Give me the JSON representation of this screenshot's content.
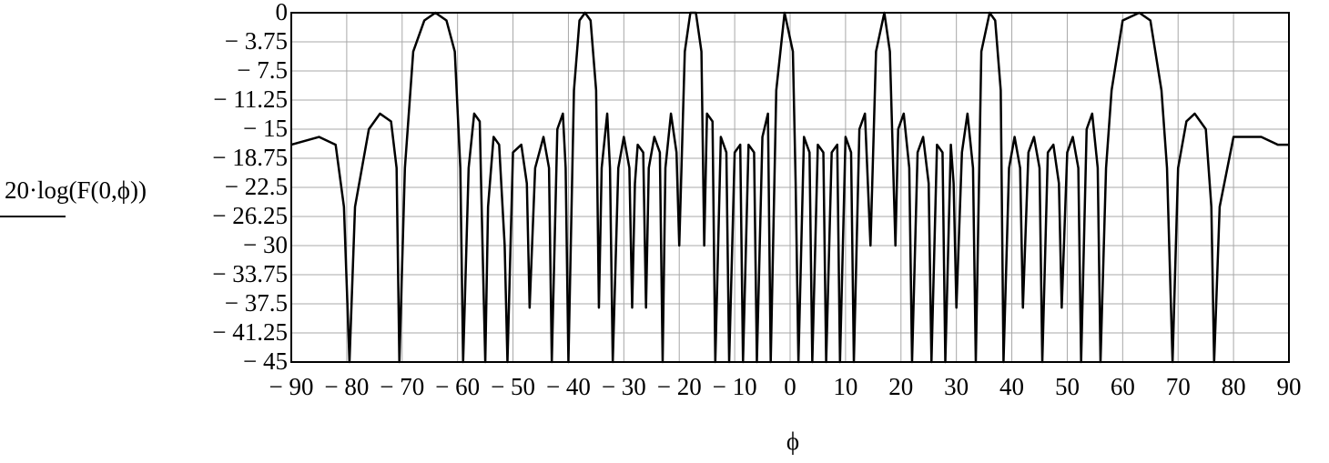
{
  "chart_data": {
    "type": "line",
    "x_label": "ϕ",
    "y_label": "20·log(F(0,ϕ))",
    "xlim": [
      -90,
      90
    ],
    "ylim": [
      -45,
      0
    ],
    "xticks": [
      {
        "value": -90,
        "label": "− 90"
      },
      {
        "value": -80,
        "label": "− 80"
      },
      {
        "value": -70,
        "label": "− 70"
      },
      {
        "value": -60,
        "label": "− 60"
      },
      {
        "value": -50,
        "label": "− 50"
      },
      {
        "value": -40,
        "label": "− 40"
      },
      {
        "value": -30,
        "label": "− 30"
      },
      {
        "value": -20,
        "label": "− 20"
      },
      {
        "value": -10,
        "label": "− 10"
      },
      0,
      10,
      20,
      30,
      40,
      50,
      60,
      70,
      80,
      90
    ],
    "yticks": [
      0,
      {
        "value": -3.75,
        "label": "− 3.75"
      },
      {
        "value": -7.5,
        "label": "− 7.5"
      },
      {
        "value": -11.25,
        "label": "− 11.25"
      },
      {
        "value": -15,
        "label": "− 15"
      },
      {
        "value": -18.75,
        "label": "− 18.75"
      },
      {
        "value": -22.5,
        "label": "− 22.5"
      },
      {
        "value": -26.25,
        "label": "− 26.25"
      },
      {
        "value": -30,
        "label": "− 30"
      },
      {
        "value": -33.75,
        "label": "− 33.75"
      },
      {
        "value": -37.5,
        "label": "− 37.5"
      },
      {
        "value": -41.25,
        "label": "− 41.25"
      },
      {
        "value": -45,
        "label": "− 45"
      }
    ],
    "grid": true,
    "x": [
      -90,
      -85,
      -82,
      -80.5,
      -79.5,
      -78.5,
      -76,
      -74,
      -72,
      -71,
      -70.5,
      -69.5,
      -68,
      -66,
      -64,
      -62,
      -60.5,
      -59.5,
      -59,
      -58,
      -57,
      -56,
      -55.5,
      -55,
      -54.5,
      -53.5,
      -52.5,
      -51.5,
      -51,
      -50,
      -48.5,
      -47.5,
      -47,
      -46,
      -44.5,
      -43.5,
      -43,
      -42,
      -41,
      -40.5,
      -40,
      -39,
      -38,
      -37,
      -36,
      -35,
      -34.5,
      -34,
      -33,
      -32.5,
      -32,
      -31,
      -30,
      -29,
      -28.5,
      -28,
      -27.5,
      -26.5,
      -26,
      -25.5,
      -24.5,
      -23.5,
      -23,
      -22.5,
      -21.5,
      -20.5,
      -20,
      -19,
      -18,
      -17,
      -16,
      -15.5,
      -15,
      -14,
      -13.5,
      -12.5,
      -11.5,
      -11,
      -10,
      -9,
      -8.5,
      -7.5,
      -6.5,
      -6,
      -5,
      -4,
      -3.5,
      -2.5,
      -1,
      0.5,
      1,
      1.5,
      2.5,
      3.5,
      4,
      5,
      6,
      6.5,
      7.5,
      8.5,
      9,
      10,
      11,
      11.5,
      12.5,
      13.5,
      14.5,
      15.5,
      17,
      18,
      19,
      19.5,
      20.5,
      21.5,
      22,
      23,
      24,
      25,
      25.5,
      26.5,
      27.5,
      28,
      29,
      29.5,
      30,
      31,
      32,
      33,
      33.5,
      34.5,
      36,
      37,
      38,
      38.5,
      39.5,
      40.5,
      41.5,
      42,
      43,
      44,
      45,
      45.5,
      46.5,
      47.5,
      48.5,
      49,
      50,
      51,
      52,
      52.5,
      53.5,
      54.5,
      55.5,
      56,
      57,
      58,
      60,
      63,
      65,
      67,
      68,
      69,
      70,
      71.5,
      73,
      75,
      76,
      76.5,
      77.5,
      80,
      85,
      88,
      90
    ],
    "series": [
      {
        "color": "#000000",
        "values": [
          -17,
          -16,
          -17,
          -25,
          -45,
          -25,
          -15,
          -13,
          -14,
          -20,
          -45,
          -20,
          -5,
          -1,
          0,
          -1,
          -5,
          -20,
          -45,
          -20,
          -13,
          -14,
          -30,
          -45,
          -25,
          -16,
          -17,
          -30,
          -45,
          -18,
          -17,
          -22,
          -38,
          -20,
          -16,
          -20,
          -45,
          -15,
          -13,
          -20,
          -45,
          -10,
          -1,
          0,
          -1,
          -10,
          -38,
          -20,
          -13,
          -20,
          -45,
          -20,
          -16,
          -20,
          -38,
          -22,
          -17,
          -18,
          -38,
          -20,
          -16,
          -18,
          -45,
          -20,
          -13,
          -18,
          -30,
          -5,
          0,
          0,
          -5,
          -30,
          -13,
          -14,
          -45,
          -16,
          -18,
          -45,
          -18,
          -17,
          -45,
          -17,
          -18,
          -45,
          -16,
          -13,
          -45,
          -10,
          0,
          -5,
          -22,
          -45,
          -16,
          -18,
          -45,
          -17,
          -18,
          -45,
          -18,
          -17,
          -45,
          -16,
          -18,
          -45,
          -15,
          -13,
          -30,
          -5,
          0,
          -5,
          -30,
          -15,
          -13,
          -20,
          -45,
          -18,
          -16,
          -22,
          -45,
          -17,
          -18,
          -45,
          -17,
          -22,
          -38,
          -18,
          -13,
          -20,
          -45,
          -5,
          0,
          -1,
          -10,
          -45,
          -20,
          -16,
          -20,
          -38,
          -18,
          -16,
          -20,
          -45,
          -18,
          -17,
          -22,
          -38,
          -18,
          -16,
          -20,
          -45,
          -15,
          -13,
          -20,
          -45,
          -20,
          -10,
          -1,
          0,
          -1,
          -10,
          -20,
          -45,
          -20,
          -14,
          -13,
          -15,
          -25,
          -45,
          -25,
          -16,
          -16,
          -17,
          -17
        ]
      }
    ]
  }
}
